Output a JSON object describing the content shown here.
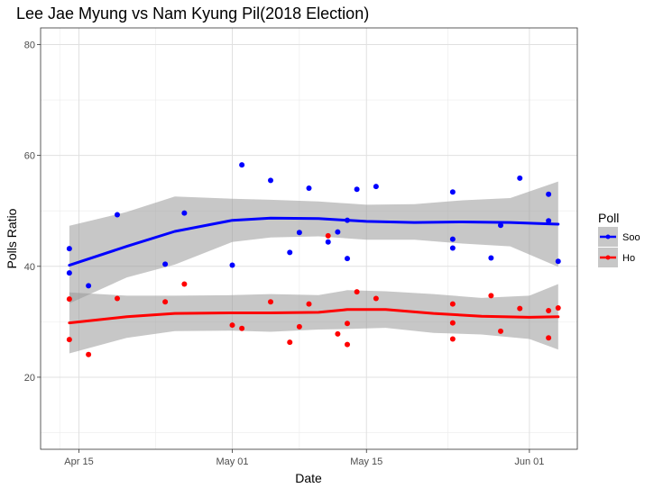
{
  "chart_data": {
    "type": "scatter",
    "title": "Lee Jae Myung vs Nam Kyung Pil(2018 Election)",
    "xlabel": "Date",
    "ylabel": "Polls Ratio",
    "x_unit": "date",
    "xlim": [
      "2018-04-11",
      "2018-06-06"
    ],
    "ylim": [
      7,
      83
    ],
    "x_ticks": [
      {
        "date": "2018-04-15",
        "label": "Apr 15"
      },
      {
        "date": "2018-05-01",
        "label": "May 01"
      },
      {
        "date": "2018-05-15",
        "label": "May 15"
      },
      {
        "date": "2018-06-01",
        "label": "Jun 01"
      }
    ],
    "y_ticks": [
      20,
      40,
      60,
      80
    ],
    "grid": true,
    "legend": {
      "title": "Poll",
      "position": "right"
    },
    "series": [
      {
        "name": "Soo",
        "color": "#0000ff",
        "points": [
          {
            "x": "2018-04-14",
            "y": 43.2
          },
          {
            "x": "2018-04-14",
            "y": 38.8
          },
          {
            "x": "2018-04-16",
            "y": 36.5
          },
          {
            "x": "2018-04-19",
            "y": 49.3
          },
          {
            "x": "2018-04-24",
            "y": 40.4
          },
          {
            "x": "2018-04-26",
            "y": 49.6
          },
          {
            "x": "2018-05-01",
            "y": 40.2
          },
          {
            "x": "2018-05-02",
            "y": 58.3
          },
          {
            "x": "2018-05-05",
            "y": 55.5
          },
          {
            "x": "2018-05-07",
            "y": 42.5
          },
          {
            "x": "2018-05-08",
            "y": 46.1
          },
          {
            "x": "2018-05-09",
            "y": 54.1
          },
          {
            "x": "2018-05-11",
            "y": 44.4
          },
          {
            "x": "2018-05-12",
            "y": 46.2
          },
          {
            "x": "2018-05-13",
            "y": 48.3
          },
          {
            "x": "2018-05-13",
            "y": 41.4
          },
          {
            "x": "2018-05-14",
            "y": 53.9
          },
          {
            "x": "2018-05-16",
            "y": 54.4
          },
          {
            "x": "2018-05-24",
            "y": 53.4
          },
          {
            "x": "2018-05-24",
            "y": 44.9
          },
          {
            "x": "2018-05-24",
            "y": 43.3
          },
          {
            "x": "2018-05-28",
            "y": 41.5
          },
          {
            "x": "2018-05-29",
            "y": 47.4
          },
          {
            "x": "2018-05-31",
            "y": 55.9
          },
          {
            "x": "2018-06-03",
            "y": 53.0
          },
          {
            "x": "2018-06-03",
            "y": 48.2
          },
          {
            "x": "2018-06-04",
            "y": 40.9
          }
        ],
        "trend": {
          "x": [
            "2018-04-14",
            "2018-04-20",
            "2018-04-25",
            "2018-05-01",
            "2018-05-05",
            "2018-05-10",
            "2018-05-15",
            "2018-05-20",
            "2018-05-25",
            "2018-05-30",
            "2018-06-04"
          ],
          "y": [
            40.2,
            43.6,
            46.3,
            48.3,
            48.7,
            48.6,
            48.1,
            47.9,
            48.0,
            47.9,
            47.6
          ],
          "upper": [
            47.3,
            49.8,
            52.6,
            52.2,
            52.0,
            51.7,
            51.1,
            51.2,
            51.9,
            52.3,
            55.3
          ],
          "lower": [
            33.3,
            38.0,
            40.3,
            44.4,
            45.2,
            45.4,
            44.8,
            44.8,
            44.1,
            43.6,
            39.9
          ]
        }
      },
      {
        "name": "Ho",
        "color": "#ff0000",
        "points": [
          {
            "x": "2018-04-14",
            "y": 34.1
          },
          {
            "x": "2018-04-14",
            "y": 26.8
          },
          {
            "x": "2018-04-16",
            "y": 24.1
          },
          {
            "x": "2018-04-19",
            "y": 34.2
          },
          {
            "x": "2018-04-24",
            "y": 33.6
          },
          {
            "x": "2018-04-26",
            "y": 36.8
          },
          {
            "x": "2018-05-01",
            "y": 29.4
          },
          {
            "x": "2018-05-02",
            "y": 28.8
          },
          {
            "x": "2018-05-05",
            "y": 33.6
          },
          {
            "x": "2018-05-07",
            "y": 26.3
          },
          {
            "x": "2018-05-08",
            "y": 29.1
          },
          {
            "x": "2018-05-09",
            "y": 33.2
          },
          {
            "x": "2018-05-11",
            "y": 45.5
          },
          {
            "x": "2018-05-12",
            "y": 27.8
          },
          {
            "x": "2018-05-13",
            "y": 29.7
          },
          {
            "x": "2018-05-13",
            "y": 25.9
          },
          {
            "x": "2018-05-14",
            "y": 35.4
          },
          {
            "x": "2018-05-16",
            "y": 34.2
          },
          {
            "x": "2018-05-24",
            "y": 33.2
          },
          {
            "x": "2018-05-24",
            "y": 29.8
          },
          {
            "x": "2018-05-24",
            "y": 26.9
          },
          {
            "x": "2018-05-28",
            "y": 34.7
          },
          {
            "x": "2018-05-29",
            "y": 28.3
          },
          {
            "x": "2018-05-31",
            "y": 32.4
          },
          {
            "x": "2018-06-03",
            "y": 32.0
          },
          {
            "x": "2018-06-03",
            "y": 27.1
          },
          {
            "x": "2018-06-04",
            "y": 32.5
          }
        ],
        "trend": {
          "x": [
            "2018-04-14",
            "2018-04-20",
            "2018-04-25",
            "2018-05-01",
            "2018-05-05",
            "2018-05-10",
            "2018-05-13",
            "2018-05-17",
            "2018-05-22",
            "2018-05-27",
            "2018-06-01",
            "2018-06-04"
          ],
          "y": [
            29.8,
            30.9,
            31.5,
            31.6,
            31.6,
            31.7,
            32.2,
            32.2,
            31.5,
            31.0,
            30.8,
            30.9
          ],
          "upper": [
            35.3,
            34.7,
            34.7,
            34.8,
            35.0,
            34.8,
            35.7,
            35.5,
            35.0,
            34.3,
            34.7,
            36.8
          ],
          "lower": [
            24.3,
            27.1,
            28.3,
            28.4,
            28.2,
            28.6,
            28.7,
            28.9,
            28.0,
            27.7,
            26.9,
            25.0
          ]
        }
      }
    ]
  }
}
